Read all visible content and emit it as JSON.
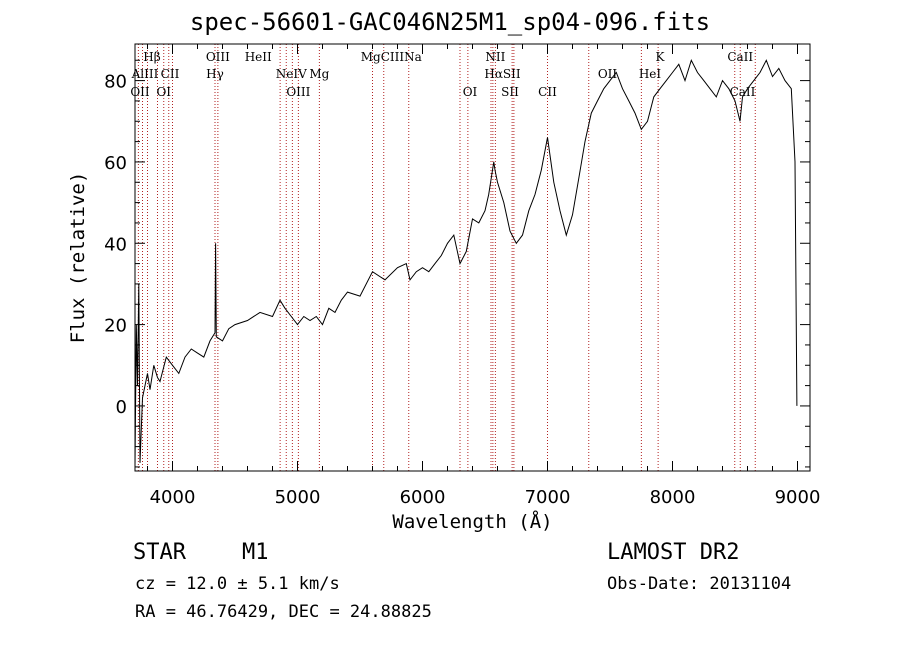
{
  "chart_data": {
    "type": "line",
    "title": "spec-56601-GAC046N25M1_sp04-096.fits",
    "xlabel": "Wavelength (Å)",
    "ylabel": "Flux (relative)",
    "xlim": [
      3700,
      9100
    ],
    "ylim": [
      -16,
      89
    ],
    "x_ticks": [
      4000,
      5000,
      6000,
      7000,
      8000,
      9000
    ],
    "y_ticks": [
      0,
      20,
      40,
      60,
      80
    ],
    "series": [
      {
        "x": [
          3700,
          3710,
          3720,
          3730,
          3740,
          3760,
          3780,
          3800,
          3820,
          3850,
          3880,
          3900,
          3950,
          4000,
          4050,
          4100,
          4150,
          4200,
          4250,
          4300,
          4340,
          4345,
          4350,
          4400,
          4450,
          4500,
          4600,
          4700,
          4800,
          4860,
          4900,
          4950,
          5000,
          5050,
          5100,
          5150,
          5200,
          5250,
          5300,
          5350,
          5400,
          5500,
          5600,
          5700,
          5800,
          5870,
          5900,
          5950,
          6000,
          6050,
          6100,
          6150,
          6200,
          6250,
          6300,
          6350,
          6400,
          6450,
          6500,
          6530,
          6560,
          6570,
          6580,
          6600,
          6650,
          6700,
          6750,
          6800,
          6850,
          6900,
          6950,
          7000,
          7050,
          7100,
          7150,
          7200,
          7250,
          7300,
          7350,
          7400,
          7450,
          7500,
          7550,
          7600,
          7650,
          7700,
          7750,
          7800,
          7850,
          7900,
          7950,
          8000,
          8050,
          8100,
          8150,
          8200,
          8250,
          8300,
          8350,
          8400,
          8450,
          8500,
          8540,
          8560,
          8600,
          8650,
          8700,
          8750,
          8800,
          8850,
          8900,
          8950,
          8980,
          8995
        ],
        "y": [
          -15,
          20,
          5,
          30,
          -14,
          2,
          5,
          8,
          4,
          10,
          7,
          6,
          12,
          10,
          8,
          12,
          14,
          13,
          12,
          16,
          18,
          40,
          17,
          16,
          19,
          20,
          21,
          23,
          22,
          26,
          24,
          22,
          20,
          22,
          21,
          22,
          20,
          24,
          23,
          26,
          28,
          27,
          33,
          31,
          34,
          35,
          31,
          33,
          34,
          33,
          35,
          37,
          40,
          42,
          35,
          38,
          46,
          45,
          48,
          52,
          58,
          60,
          58,
          55,
          50,
          43,
          40,
          42,
          48,
          52,
          58,
          66,
          55,
          48,
          42,
          47,
          56,
          65,
          72,
          75,
          78,
          80,
          82,
          78,
          75,
          72,
          68,
          70,
          76,
          78,
          80,
          82,
          84,
          80,
          85,
          82,
          80,
          78,
          76,
          80,
          78,
          75,
          70,
          76,
          78,
          80,
          82,
          85,
          81,
          83,
          80,
          78,
          60,
          0
        ]
      }
    ],
    "lines_top": [
      {
        "label": "Hβ",
        "x": 3836
      },
      {
        "label": "OIII",
        "x": 4363
      },
      {
        "label": "HeII",
        "x": 4686
      },
      {
        "label": "MgCIIINa",
        "x": 5750
      },
      {
        "label": "NII",
        "x": 6583
      },
      {
        "label": "K",
        "x": 7900
      },
      {
        "label": "CaII",
        "x": 8542
      }
    ],
    "lines_mid": [
      {
        "label": "AlIII",
        "x": 3780
      },
      {
        "label": "CII",
        "x": 3980
      },
      {
        "label": "Hγ",
        "x": 4340
      },
      {
        "label": "NeIV",
        "x": 4950
      },
      {
        "label": "Mg",
        "x": 5175
      },
      {
        "label": "HαSII",
        "x": 6640
      },
      {
        "label": "OII",
        "x": 7480
      },
      {
        "label": "HeI",
        "x": 7820
      }
    ],
    "lines_low": [
      {
        "label": "OII",
        "x": 3740
      },
      {
        "label": "OI",
        "x": 3930
      },
      {
        "label": "OIII",
        "x": 5007
      },
      {
        "label": "OI",
        "x": 6380
      },
      {
        "label": "SII",
        "x": 6700
      },
      {
        "label": "CII",
        "x": 7000
      },
      {
        "label": "CaII",
        "x": 8560
      }
    ],
    "line_markers_x": [
      3727,
      3760,
      3800,
      3880,
      3930,
      3970,
      4000,
      4340,
      4363,
      4861,
      4910,
      4959,
      5007,
      5175,
      5600,
      5690,
      5890,
      6300,
      6363,
      6548,
      6563,
      6583,
      6717,
      6731,
      7000,
      7330,
      7751,
      7885,
      8498,
      8542,
      8662
    ]
  },
  "footer": {
    "object_class": "STAR",
    "subclass": "M1",
    "cz": "cz = 12.0 ± 5.1 km/s",
    "coords": "RA =  46.76429, DEC =  24.88825",
    "survey": "LAMOST DR2",
    "obs_date": "Obs-Date: 20131104"
  }
}
